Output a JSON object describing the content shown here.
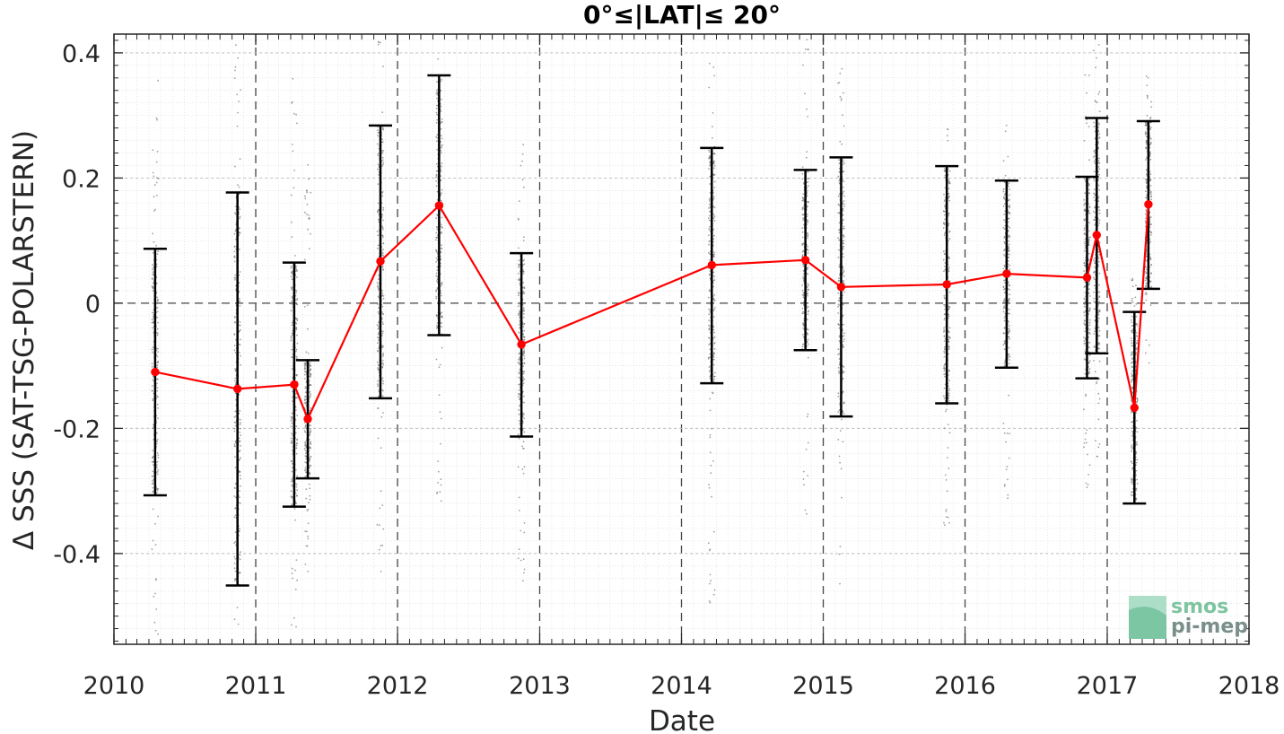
{
  "chart_data": {
    "type": "scatter",
    "title": "0°≤|LAT|≤ 20°",
    "xlabel": "Date",
    "ylabel": "Δ SSS (SAT-TSG-POLARSTERN)",
    "xlim": [
      "2010-01-01",
      "2018-01-01"
    ],
    "ylim": [
      -0.545,
      0.43
    ],
    "x_ticks": [
      "2010",
      "2011",
      "2012",
      "2013",
      "2014",
      "2015",
      "2016",
      "2017",
      "2018"
    ],
    "y_ticks": [
      0.4,
      0.2,
      0,
      -0.2,
      -0.4
    ],
    "y_tick_labels": [
      "0.4",
      "0.2",
      "0",
      "-0.2",
      "-0.4"
    ],
    "grid": true,
    "series": [
      {
        "kind": "mean_with_std",
        "color": "#ff0000",
        "points": [
          {
            "date": "2010-04-17",
            "mean": -0.11,
            "low": -0.307,
            "high": 0.087
          },
          {
            "date": "2010-11-15",
            "mean": -0.137,
            "low": -0.451,
            "high": 0.177
          },
          {
            "date": "2011-04-10",
            "mean": -0.13,
            "low": -0.325,
            "high": 0.065
          },
          {
            "date": "2011-05-15",
            "mean": -0.185,
            "low": -0.28,
            "high": -0.091
          },
          {
            "date": "2011-11-18",
            "mean": 0.067,
            "low": -0.152,
            "high": 0.284
          },
          {
            "date": "2012-04-17",
            "mean": 0.156,
            "low": -0.051,
            "high": 0.364
          },
          {
            "date": "2012-11-15",
            "mean": -0.066,
            "low": -0.213,
            "high": 0.08
          },
          {
            "date": "2014-03-20",
            "mean": 0.061,
            "low": -0.128,
            "high": 0.248
          },
          {
            "date": "2014-11-16",
            "mean": 0.069,
            "low": -0.075,
            "high": 0.213
          },
          {
            "date": "2015-02-16",
            "mean": 0.026,
            "low": -0.181,
            "high": 0.233
          },
          {
            "date": "2015-11-15",
            "mean": 0.03,
            "low": -0.16,
            "high": 0.219
          },
          {
            "date": "2016-04-17",
            "mean": 0.047,
            "low": -0.103,
            "high": 0.196
          },
          {
            "date": "2016-11-10",
            "mean": 0.041,
            "low": -0.12,
            "high": 0.202
          },
          {
            "date": "2016-12-05",
            "mean": 0.109,
            "low": -0.08,
            "high": 0.296
          },
          {
            "date": "2017-03-12",
            "mean": -0.167,
            "low": -0.32,
            "high": -0.014
          },
          {
            "date": "2017-04-17",
            "mean": 0.158,
            "low": 0.023,
            "high": 0.291
          }
        ]
      },
      {
        "kind": "raw_differences",
        "color": "#808080",
        "clusters": [
          {
            "date": "2010-04-17",
            "min": -0.54,
            "max": 0.39
          },
          {
            "date": "2010-11-15",
            "min": -0.52,
            "max": 0.43
          },
          {
            "date": "2011-04-10",
            "min": -0.53,
            "max": 0.37
          },
          {
            "date": "2011-05-15",
            "min": -0.45,
            "max": 0.24
          },
          {
            "date": "2011-11-18",
            "min": -0.44,
            "max": 0.42
          },
          {
            "date": "2012-04-17",
            "min": -0.32,
            "max": 0.4
          },
          {
            "date": "2012-11-15",
            "min": -0.45,
            "max": 0.27
          },
          {
            "date": "2014-03-20",
            "min": -0.49,
            "max": 0.42
          },
          {
            "date": "2014-11-16",
            "min": -0.35,
            "max": 0.43
          },
          {
            "date": "2015-02-16",
            "min": -0.45,
            "max": 0.38
          },
          {
            "date": "2015-11-15",
            "min": -0.37,
            "max": 0.28
          },
          {
            "date": "2016-04-17",
            "min": -0.32,
            "max": 0.29
          },
          {
            "date": "2016-11-10",
            "min": -0.3,
            "max": 0.38
          },
          {
            "date": "2016-12-05",
            "min": -0.25,
            "max": 0.42
          },
          {
            "date": "2017-03-12",
            "min": -0.3,
            "max": 0.05
          },
          {
            "date": "2017-04-17",
            "min": -0.1,
            "max": 0.37
          }
        ]
      }
    ]
  },
  "logo": {
    "line1": "smos",
    "line2": "pi-mep"
  }
}
